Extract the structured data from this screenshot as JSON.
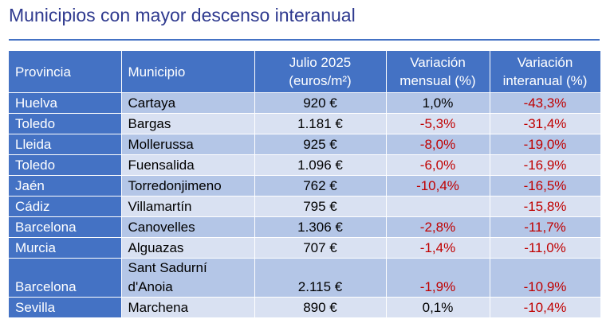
{
  "title": "Municipios con mayor descenso interanual",
  "colors": {
    "header": "#4472c4",
    "row_odd": "#b4c6e7",
    "row_even": "#d9e1f2",
    "negative": "#c00000",
    "title": "#2f3a8f"
  },
  "table": {
    "headers": [
      "Provincia",
      "Municipio",
      "Julio 2025\n(euros/m²)",
      "Variación\nmensual (%)",
      "Variación\ninteranual (%)"
    ],
    "rows": [
      {
        "provincia": "Huelva",
        "municipio": "Cartaya",
        "precio": "920 €",
        "mensual": "1,0%",
        "interanual": "-43,3%"
      },
      {
        "provincia": "Toledo",
        "municipio": "Bargas",
        "precio": "1.181 €",
        "mensual": "-5,3%",
        "interanual": "-31,4%"
      },
      {
        "provincia": "Lleida",
        "municipio": "Mollerussa",
        "precio": "925 €",
        "mensual": "-8,0%",
        "interanual": "-19,0%"
      },
      {
        "provincia": "Toledo",
        "municipio": "Fuensalida",
        "precio": "1.096 €",
        "mensual": "-6,0%",
        "interanual": "-16,9%"
      },
      {
        "provincia": "Jaén",
        "municipio": "Torredonjimeno",
        "precio": "762 €",
        "mensual": "-10,4%",
        "interanual": "-16,5%"
      },
      {
        "provincia": "Cádiz",
        "municipio": "Villamartín",
        "precio": "795 €",
        "mensual": "",
        "interanual": "-15,8%"
      },
      {
        "provincia": "Barcelona",
        "municipio": "Canovelles",
        "precio": "1.306 €",
        "mensual": "-2,8%",
        "interanual": "-11,7%"
      },
      {
        "provincia": "Murcia",
        "municipio": "Alguazas",
        "precio": "707 €",
        "mensual": "-1,4%",
        "interanual": "-11,0%"
      },
      {
        "provincia": "Barcelona",
        "municipio": "Sant Sadurní d'Anoia",
        "precio": "2.115 €",
        "mensual": "-1,9%",
        "interanual": "-10,9%"
      },
      {
        "provincia": "Sevilla",
        "municipio": "Marchena",
        "precio": "890 €",
        "mensual": "0,1%",
        "interanual": "-10,4%"
      }
    ]
  }
}
